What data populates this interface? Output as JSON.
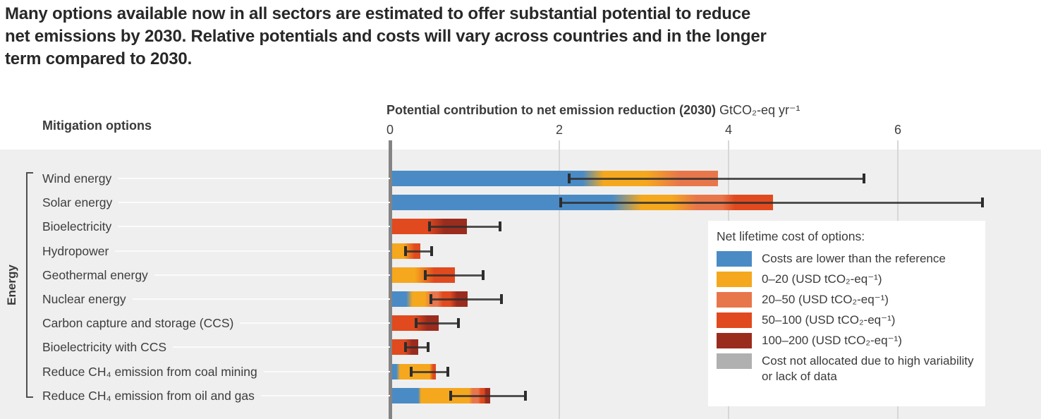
{
  "title_lines": [
    "Many options available now in all sectors are estimated to offer substantial potential to reduce",
    "net emissions by 2030. Relative potentials and costs will vary across countries and in the longer",
    "term compared to 2030."
  ],
  "header": {
    "mitigation_options_label": "Mitigation options",
    "axis_title_bold": "Potential contribution to net emission reduction (2030)",
    "axis_title_unit": " GtCO₂-eq yr⁻¹"
  },
  "sector_label": "Energy",
  "colors": {
    "blue": "#4a8bc5",
    "orange": "#f5a81e",
    "salmon": "#e8764b",
    "red": "#e04a1e",
    "darkred": "#9a2c1e",
    "gray": "#b0b0b0",
    "chart_bg": "#efefef",
    "grid": "#d7d7d7",
    "zero_axis": "#848484",
    "error_bar": "#2d2d2d"
  },
  "legend": {
    "title": "Net lifetime cost of options:",
    "items": [
      {
        "key": "blue",
        "label": "Costs are lower than the reference"
      },
      {
        "key": "orange",
        "label": "0–20 (USD tCO₂-eq⁻¹)"
      },
      {
        "key": "salmon",
        "label": "20–50 (USD tCO₂-eq⁻¹)"
      },
      {
        "key": "red",
        "label": "50–100 (USD tCO₂-eq⁻¹)"
      },
      {
        "key": "darkred",
        "label": "100–200 (USD tCO₂-eq⁻¹)"
      },
      {
        "key": "gray",
        "label": "Cost not allocated due to high variability or lack of data"
      }
    ]
  },
  "chart_data": {
    "type": "bar",
    "orientation": "horizontal",
    "title": "Potential contribution to net emission reduction (2030)",
    "unit": "GtCO₂-eq yr⁻¹",
    "xlabel": "Potential contribution to net emission reduction (2030) GtCO₂-eq yr⁻¹",
    "xlim": [
      0,
      7.7
    ],
    "xticks": [
      0,
      2,
      4,
      6
    ],
    "grid": true,
    "sector": "Energy",
    "legend_position": "right-overlay",
    "cost_note": "segments are cumulative potential (GtCO₂-eq/yr) by net lifetime cost bucket; stops give [color-bucket, cumulative value] gradient stops; error = [low, high] full range whiskers",
    "bars": [
      {
        "label": "Wind energy",
        "total": 3.85,
        "error": [
          2.1,
          5.6
        ],
        "stops": [
          [
            "blue",
            0
          ],
          [
            "blue",
            2.25
          ],
          [
            "orange",
            2.5
          ],
          [
            "orange",
            3.0
          ],
          [
            "salmon",
            3.4
          ],
          [
            "salmon",
            3.85
          ]
        ]
      },
      {
        "label": "Solar energy",
        "total": 4.5,
        "error": [
          2.0,
          7.0
        ],
        "stops": [
          [
            "blue",
            0
          ],
          [
            "blue",
            2.6
          ],
          [
            "orange",
            2.95
          ],
          [
            "orange",
            3.3
          ],
          [
            "salmon",
            3.6
          ],
          [
            "salmon",
            3.9
          ],
          [
            "red",
            4.05
          ],
          [
            "red",
            4.5
          ]
        ]
      },
      {
        "label": "Bioelectricity",
        "total": 0.88,
        "error": [
          0.45,
          1.3
        ],
        "stops": [
          [
            "red",
            0
          ],
          [
            "red",
            0.42
          ],
          [
            "darkred",
            0.62
          ],
          [
            "darkred",
            0.88
          ]
        ]
      },
      {
        "label": "Hydropower",
        "total": 0.33,
        "error": [
          0.17,
          0.49
        ],
        "stops": [
          [
            "orange",
            0
          ],
          [
            "orange",
            0.13
          ],
          [
            "red",
            0.27
          ],
          [
            "red",
            0.33
          ]
        ]
      },
      {
        "label": "Geothermal energy",
        "total": 0.74,
        "error": [
          0.4,
          1.1
        ],
        "stops": [
          [
            "orange",
            0
          ],
          [
            "orange",
            0.27
          ],
          [
            "red",
            0.5
          ],
          [
            "red",
            0.74
          ]
        ]
      },
      {
        "label": "Nuclear energy",
        "total": 0.89,
        "error": [
          0.47,
          1.32
        ],
        "stops": [
          [
            "blue",
            0
          ],
          [
            "blue",
            0.17
          ],
          [
            "orange",
            0.24
          ],
          [
            "orange",
            0.38
          ],
          [
            "salmon",
            0.47
          ],
          [
            "salmon",
            0.53
          ],
          [
            "red",
            0.6
          ],
          [
            "red",
            0.68
          ],
          [
            "darkred",
            0.77
          ],
          [
            "darkred",
            0.89
          ]
        ]
      },
      {
        "label": "Carbon capture and storage (CCS)",
        "total": 0.55,
        "error": [
          0.29,
          0.81
        ],
        "stops": [
          [
            "red",
            0
          ],
          [
            "red",
            0.27
          ],
          [
            "darkred",
            0.42
          ],
          [
            "darkred",
            0.55
          ]
        ]
      },
      {
        "label": "Bioelectricity with CCS",
        "total": 0.31,
        "error": [
          0.17,
          0.45
        ],
        "stops": [
          [
            "red",
            0
          ],
          [
            "red",
            0.15
          ],
          [
            "darkred",
            0.23
          ],
          [
            "darkred",
            0.31
          ]
        ]
      },
      {
        "label": "Reduce CH₄ emission from coal mining",
        "total": 0.52,
        "error": [
          0.23,
          0.68
        ],
        "stops": [
          [
            "blue",
            0
          ],
          [
            "blue",
            0.05
          ],
          [
            "orange",
            0.09
          ],
          [
            "orange",
            0.44
          ],
          [
            "red",
            0.48
          ],
          [
            "red",
            0.52
          ]
        ]
      },
      {
        "label": "Reduce CH₄ emission from oil and gas",
        "total": 1.16,
        "error": [
          0.7,
          1.6
        ],
        "stops": [
          [
            "blue",
            0
          ],
          [
            "blue",
            0.31
          ],
          [
            "orange",
            0.34
          ],
          [
            "orange",
            0.91
          ],
          [
            "salmon",
            0.95
          ],
          [
            "salmon",
            1.02
          ],
          [
            "red",
            1.05
          ],
          [
            "red",
            1.08
          ],
          [
            "darkred",
            1.11
          ],
          [
            "darkred",
            1.16
          ]
        ]
      }
    ]
  }
}
